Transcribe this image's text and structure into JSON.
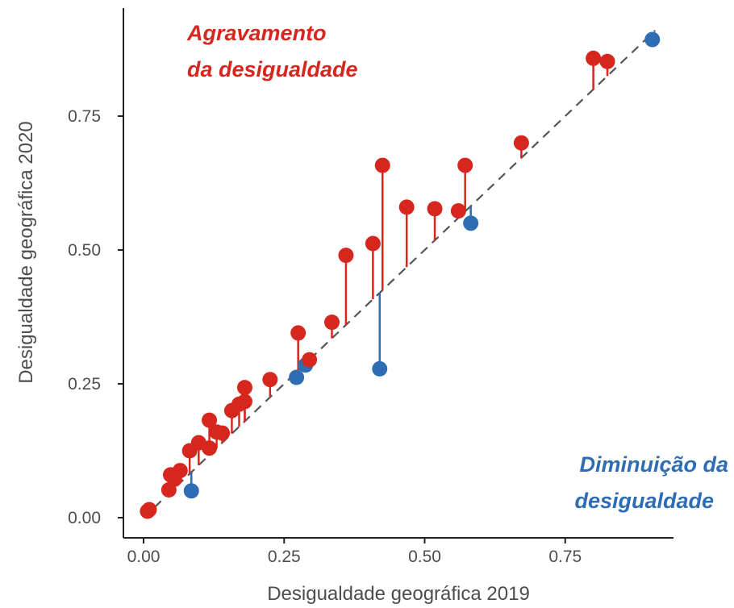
{
  "chart_data": {
    "type": "scatter",
    "xlabel": "Desigualdade geográfica 2019",
    "ylabel": "Desigualdade geográfica 2020",
    "xlim": [
      -0.04,
      0.96
    ],
    "ylim": [
      -0.03,
      0.95
    ],
    "x_ticks": [
      "0.00",
      "0.25",
      "0.50",
      "0.75"
    ],
    "y_ticks": [
      "0.00",
      "0.25",
      "0.50",
      "0.75"
    ],
    "grid": false,
    "reference_line": "y = x (dashed)",
    "annotations": {
      "increase_line1": "Agravamento",
      "increase_line2": "da desigualdade",
      "decrease_line1": "Diminuição da",
      "decrease_line2": "desigualdade"
    },
    "colors": {
      "increase": "#d7261e",
      "decrease": "#2e6db4",
      "diagonal": "#555555",
      "axis": "#222222"
    },
    "points": [
      {
        "x": 0.007,
        "y": 0.012
      },
      {
        "x": 0.01,
        "y": 0.015
      },
      {
        "x": 0.045,
        "y": 0.052
      },
      {
        "x": 0.048,
        "y": 0.08
      },
      {
        "x": 0.055,
        "y": 0.072
      },
      {
        "x": 0.065,
        "y": 0.088
      },
      {
        "x": 0.082,
        "y": 0.125
      },
      {
        "x": 0.085,
        "y": 0.05
      },
      {
        "x": 0.098,
        "y": 0.14
      },
      {
        "x": 0.117,
        "y": 0.182
      },
      {
        "x": 0.117,
        "y": 0.13
      },
      {
        "x": 0.13,
        "y": 0.16
      },
      {
        "x": 0.14,
        "y": 0.158
      },
      {
        "x": 0.157,
        "y": 0.2
      },
      {
        "x": 0.17,
        "y": 0.212
      },
      {
        "x": 0.18,
        "y": 0.217
      },
      {
        "x": 0.18,
        "y": 0.243
      },
      {
        "x": 0.225,
        "y": 0.258
      },
      {
        "x": 0.272,
        "y": 0.262
      },
      {
        "x": 0.275,
        "y": 0.345
      },
      {
        "x": 0.288,
        "y": 0.285
      },
      {
        "x": 0.295,
        "y": 0.295
      },
      {
        "x": 0.335,
        "y": 0.365
      },
      {
        "x": 0.36,
        "y": 0.49
      },
      {
        "x": 0.408,
        "y": 0.512
      },
      {
        "x": 0.42,
        "y": 0.278
      },
      {
        "x": 0.425,
        "y": 0.658
      },
      {
        "x": 0.468,
        "y": 0.58
      },
      {
        "x": 0.518,
        "y": 0.577
      },
      {
        "x": 0.56,
        "y": 0.573
      },
      {
        "x": 0.572,
        "y": 0.658
      },
      {
        "x": 0.582,
        "y": 0.55
      },
      {
        "x": 0.672,
        "y": 0.7
      },
      {
        "x": 0.8,
        "y": 0.858
      },
      {
        "x": 0.825,
        "y": 0.852
      },
      {
        "x": 0.905,
        "y": 0.893
      }
    ]
  }
}
